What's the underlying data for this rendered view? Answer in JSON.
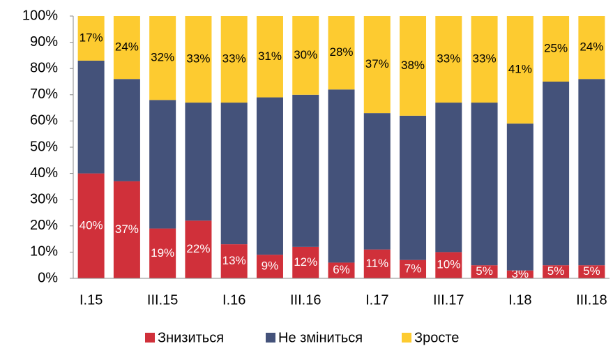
{
  "chart_data": {
    "type": "stacked_bar",
    "categories": [
      "I.15",
      null,
      "III.15",
      null,
      "I.16",
      null,
      "III.16",
      null,
      "I.17",
      null,
      "III.17",
      null,
      "I.18",
      null,
      "III.18"
    ],
    "series": [
      {
        "name": "Знизиться",
        "color": "#d0303a",
        "values": [
          40,
          37,
          19,
          22,
          13,
          9,
          12,
          6,
          11,
          7,
          10,
          5,
          3,
          5,
          5
        ],
        "value_labels": [
          "40%",
          "37%",
          "19%",
          "22%",
          "13%",
          "9%",
          "12%",
          "6%",
          "11%",
          "7%",
          "10%",
          "5%",
          "3%",
          "5%",
          "5%"
        ]
      },
      {
        "name": "Не зміниться",
        "color": "#44527a",
        "values": [
          43,
          39,
          49,
          45,
          54,
          60,
          58,
          66,
          52,
          55,
          57,
          62,
          56,
          70,
          71
        ]
      },
      {
        "name": "Зросте",
        "color": "#fdcb30",
        "values": [
          17,
          24,
          32,
          33,
          33,
          31,
          30,
          28,
          37,
          38,
          33,
          33,
          41,
          25,
          24
        ],
        "value_labels": [
          "17%",
          "24%",
          "32%",
          "33%",
          "33%",
          "31%",
          "30%",
          "28%",
          "37%",
          "38%",
          "33%",
          "33%",
          "41%",
          "25%",
          "24%"
        ]
      }
    ],
    "ylim": [
      0,
      100
    ],
    "yticks": [
      {
        "value": 0,
        "label": "0%"
      },
      {
        "value": 10,
        "label": "10%"
      },
      {
        "value": 20,
        "label": "20%"
      },
      {
        "value": 30,
        "label": "30%"
      },
      {
        "value": 40,
        "label": "40%"
      },
      {
        "value": 50,
        "label": "50%"
      },
      {
        "value": 60,
        "label": "60%"
      },
      {
        "value": 70,
        "label": "70%"
      },
      {
        "value": 80,
        "label": "80%"
      },
      {
        "value": 90,
        "label": "90%"
      },
      {
        "value": 100,
        "label": "100%"
      }
    ]
  }
}
